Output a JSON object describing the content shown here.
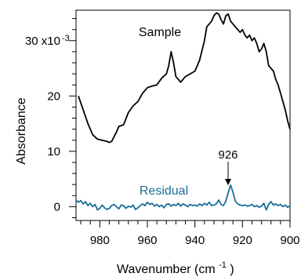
{
  "chart_data": {
    "type": "line",
    "title": "",
    "xlabel": "Wavenumber (cm",
    "xlabel_superscript": "-1",
    "xlabel_close": ")",
    "ylabel": "Absorbance",
    "xlim": [
      990,
      900
    ],
    "ylim": [
      -2.5,
      35.5
    ],
    "x_ticks": [
      980,
      960,
      940,
      920,
      900
    ],
    "x_tick_labels": [
      "980",
      "960",
      "940",
      "920",
      "900"
    ],
    "y_ticks": [
      0,
      10,
      20,
      30
    ],
    "y_tick_labels": [
      "0",
      "10",
      "20",
      "30 x10"
    ],
    "y_multiplier_superscript": "-3",
    "grid": false,
    "annotations": [
      {
        "text": "926",
        "x": 926,
        "y": 3.9
      }
    ],
    "series": [
      {
        "name": "Sample",
        "color": "#000000",
        "x": [
          989,
          987,
          985,
          983,
          981,
          979,
          977,
          976,
          975,
          973,
          972,
          970,
          968,
          966,
          964,
          962,
          960,
          958,
          956,
          954,
          952,
          951,
          950,
          949,
          948,
          947,
          946,
          944,
          942,
          940,
          938,
          936,
          935,
          934,
          933,
          932,
          931,
          930,
          929,
          928,
          927,
          926,
          925,
          924,
          923,
          922,
          921,
          920,
          919,
          918,
          917,
          916,
          915,
          914,
          913,
          912,
          911,
          910,
          909,
          908,
          907,
          906,
          905,
          904,
          903,
          902,
          901,
          900
        ],
        "y": [
          20.0,
          17.5,
          15.0,
          13.0,
          12.2,
          12.0,
          11.8,
          11.6,
          11.8,
          13.5,
          14.5,
          14.8,
          17.0,
          18.2,
          19.0,
          20.5,
          21.5,
          21.8,
          22.0,
          23.2,
          24.0,
          25.5,
          28.0,
          26.0,
          23.5,
          23.0,
          22.5,
          23.5,
          24.0,
          24.5,
          26.5,
          30.0,
          32.5,
          33.0,
          33.5,
          34.5,
          35.0,
          34.8,
          33.8,
          33.0,
          34.5,
          34.8,
          33.5,
          33.0,
          32.5,
          32.0,
          31.5,
          32.0,
          31.0,
          30.5,
          31.0,
          30.0,
          30.5,
          29.5,
          28.0,
          28.5,
          29.5,
          28.0,
          25.5,
          25.0,
          24.5,
          23.0,
          22.0,
          20.5,
          19.0,
          17.5,
          15.5,
          14.0
        ]
      },
      {
        "name": "Residual",
        "color": "#1a6e96",
        "x": [
          990,
          989,
          988,
          987,
          986,
          985,
          984,
          983,
          982,
          981,
          980,
          979,
          978,
          977,
          976,
          975,
          974,
          973,
          972,
          971,
          970,
          969,
          968,
          967,
          966,
          965,
          964,
          963,
          962,
          961,
          960,
          959,
          958,
          957,
          956,
          955,
          954,
          953,
          952,
          951,
          950,
          949,
          948,
          947,
          946,
          945,
          944,
          943,
          942,
          941,
          940,
          939,
          938,
          937,
          936,
          935,
          934,
          933,
          932,
          931,
          930,
          929,
          928,
          927,
          926,
          925,
          924,
          923,
          922,
          921,
          920,
          919,
          918,
          917,
          916,
          915,
          914,
          913,
          912,
          911,
          910,
          909,
          908,
          907,
          906,
          905,
          904,
          903,
          902,
          901,
          900
        ],
        "y": [
          1.2,
          0.8,
          1.1,
          0.5,
          0.9,
          0.2,
          0.6,
          0.0,
          0.4,
          -0.6,
          -0.3,
          0.3,
          -0.2,
          -0.5,
          -0.3,
          0.2,
          0.4,
          0.0,
          -0.4,
          0.3,
          0.2,
          -0.3,
          0.1,
          -0.1,
          0.3,
          -0.5,
          -0.2,
          0.2,
          0.5,
          0.2,
          0.8,
          0.4,
          0.6,
          0.1,
          0.4,
          0.0,
          0.3,
          -0.2,
          0.4,
          0.5,
          0.1,
          0.4,
          0.2,
          0.6,
          0.1,
          0.5,
          0.3,
          0.0,
          0.4,
          0.2,
          0.3,
          0.1,
          0.5,
          0.2,
          0.6,
          0.3,
          0.8,
          0.2,
          0.3,
          0.5,
          1.2,
          0.4,
          0.2,
          1.0,
          2.5,
          3.9,
          2.6,
          1.0,
          0.5,
          0.3,
          0.2,
          0.3,
          0.1,
          0.2,
          0.4,
          0.0,
          0.2,
          -0.1,
          0.1,
          0.6,
          -0.6,
          0.4,
          0.9,
          0.3,
          0.5,
          0.2,
          0.4,
          0.0,
          0.3,
          -0.1,
          0.2
        ]
      }
    ]
  }
}
